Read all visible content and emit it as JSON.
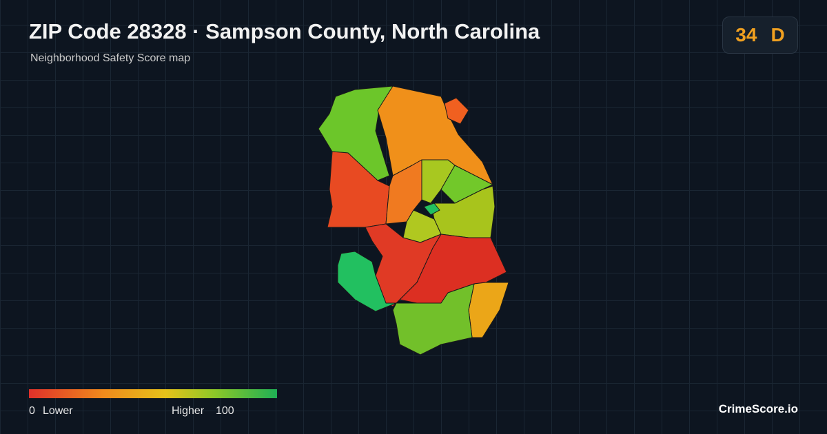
{
  "header": {
    "title": "ZIP Code 28328 · Sampson County, North Carolina",
    "subtitle": "Neighborhood Safety Score map"
  },
  "badge": {
    "score": "34",
    "grade": "D"
  },
  "legend": {
    "min": 0,
    "min_label": "Lower",
    "max_label": "Higher",
    "max": 100
  },
  "brand": "CrimeScore.io"
}
